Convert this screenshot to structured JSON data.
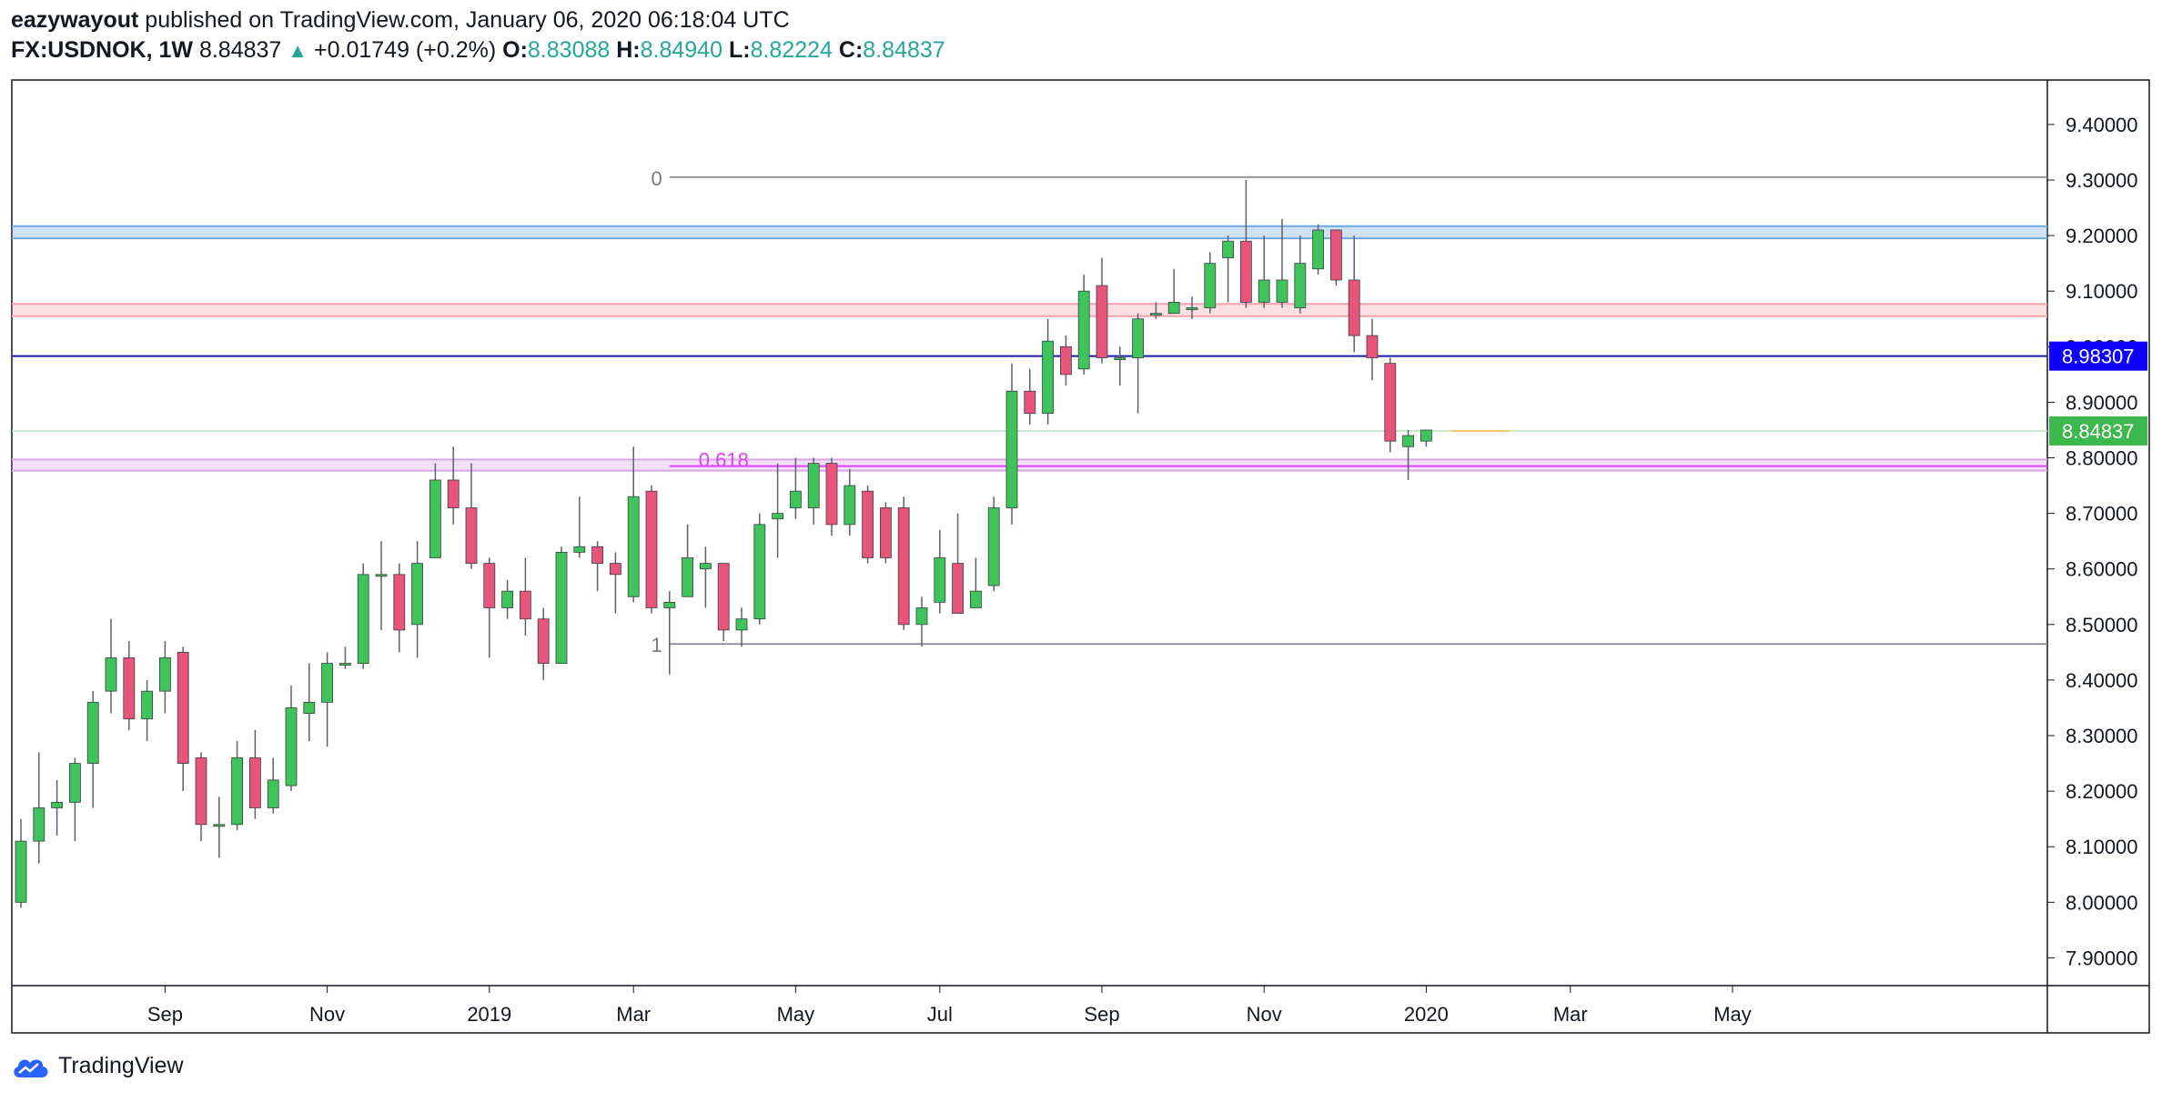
{
  "header": {
    "publisher": "eazywayout",
    "published_text": "published on TradingView.com, January 06, 2020 06:18:04 UTC",
    "symbol": "FX:USDNOK, 1W",
    "last": "8.84837",
    "change": "+0.01749 (+0.2%)",
    "o_label": "O:",
    "o_value": "8.83088",
    "h_label": "H:",
    "h_value": "8.84940",
    "l_label": "L:",
    "l_value": "8.82224",
    "c_label": "C:",
    "c_value": "8.84837"
  },
  "branding": {
    "logo_text": "TradingView",
    "logo_icon": "tradingview-cloud-icon"
  },
  "colors": {
    "up": "#3fc45b",
    "down": "#e8557a",
    "wick": "#5d606b",
    "border": "#131722",
    "blue_line": "#1a1aa6",
    "blue_badge": "#0d00ff",
    "green_badge": "#3db84c",
    "fib_magenta": "#e040fb",
    "blue_zone": "#6fa8dc",
    "red_zone": "#f4a3ab",
    "purple_zone": "#d6a6e6",
    "green_line": "#b7e3b8",
    "orange_line": "#f0c36d"
  },
  "chart_data": {
    "type": "candlestick",
    "symbol": "FX:USDNOK",
    "interval": "1W",
    "ylim": [
      7.85,
      9.48
    ],
    "y_ticks": [
      "9.40000",
      "9.30000",
      "9.20000",
      "9.10000",
      "9.00000",
      "8.90000",
      "8.80000",
      "8.70000",
      "8.60000",
      "8.50000",
      "8.40000",
      "8.30000",
      "8.20000",
      "8.10000",
      "8.00000",
      "7.90000"
    ],
    "x_ticks": [
      {
        "label": "Sep",
        "week": 8
      },
      {
        "label": "Nov",
        "week": 17
      },
      {
        "label": "2019",
        "week": 26
      },
      {
        "label": "Mar",
        "week": 34
      },
      {
        "label": "May",
        "week": 43
      },
      {
        "label": "Jul",
        "week": 51
      },
      {
        "label": "Sep",
        "week": 60
      },
      {
        "label": "Nov",
        "week": 69
      },
      {
        "label": "2020",
        "week": 78
      },
      {
        "label": "Mar",
        "week": 86
      },
      {
        "label": "May",
        "week": 95
      }
    ],
    "candles": [
      [
        8.0,
        8.11,
        7.99,
        8.15
      ],
      [
        8.11,
        8.17,
        8.07,
        8.27
      ],
      [
        8.17,
        8.18,
        8.12,
        8.22
      ],
      [
        8.18,
        8.25,
        8.11,
        8.26
      ],
      [
        8.25,
        8.36,
        8.17,
        8.38
      ],
      [
        8.38,
        8.44,
        8.34,
        8.51
      ],
      [
        8.44,
        8.33,
        8.31,
        8.47
      ],
      [
        8.33,
        8.38,
        8.29,
        8.4
      ],
      [
        8.38,
        8.44,
        8.34,
        8.47
      ],
      [
        8.45,
        8.25,
        8.2,
        8.46
      ],
      [
        8.26,
        8.14,
        8.11,
        8.27
      ],
      [
        8.14,
        8.14,
        8.08,
        8.19
      ],
      [
        8.14,
        8.26,
        8.13,
        8.29
      ],
      [
        8.26,
        8.17,
        8.15,
        8.31
      ],
      [
        8.17,
        8.22,
        8.16,
        8.26
      ],
      [
        8.21,
        8.35,
        8.2,
        8.39
      ],
      [
        8.34,
        8.36,
        8.29,
        8.43
      ],
      [
        8.36,
        8.43,
        8.28,
        8.45
      ],
      [
        8.43,
        8.43,
        8.42,
        8.46
      ],
      [
        8.43,
        8.59,
        8.42,
        8.61
      ],
      [
        8.59,
        8.59,
        8.49,
        8.65
      ],
      [
        8.59,
        8.49,
        8.45,
        8.61
      ],
      [
        8.5,
        8.61,
        8.44,
        8.65
      ],
      [
        8.62,
        8.76,
        8.62,
        8.79
      ],
      [
        8.76,
        8.71,
        8.68,
        8.82
      ],
      [
        8.71,
        8.61,
        8.6,
        8.79
      ],
      [
        8.61,
        8.53,
        8.44,
        8.62
      ],
      [
        8.53,
        8.56,
        8.51,
        8.58
      ],
      [
        8.56,
        8.51,
        8.48,
        8.62
      ],
      [
        8.51,
        8.43,
        8.4,
        8.53
      ],
      [
        8.43,
        8.63,
        8.43,
        8.64
      ],
      [
        8.63,
        8.64,
        8.62,
        8.73
      ],
      [
        8.64,
        8.61,
        8.56,
        8.65
      ],
      [
        8.61,
        8.59,
        8.52,
        8.63
      ],
      [
        8.55,
        8.73,
        8.54,
        8.82
      ],
      [
        8.74,
        8.53,
        8.52,
        8.75
      ],
      [
        8.53,
        8.54,
        8.41,
        8.56
      ],
      [
        8.55,
        8.62,
        8.55,
        8.68
      ],
      [
        8.6,
        8.61,
        8.53,
        8.64
      ],
      [
        8.61,
        8.49,
        8.47,
        8.61
      ],
      [
        8.49,
        8.51,
        8.46,
        8.53
      ],
      [
        8.51,
        8.68,
        8.5,
        8.7
      ],
      [
        8.69,
        8.7,
        8.62,
        8.79
      ],
      [
        8.71,
        8.74,
        8.69,
        8.8
      ],
      [
        8.71,
        8.79,
        8.68,
        8.8
      ],
      [
        8.79,
        8.68,
        8.66,
        8.8
      ],
      [
        8.68,
        8.75,
        8.66,
        8.78
      ],
      [
        8.74,
        8.62,
        8.61,
        8.75
      ],
      [
        8.71,
        8.62,
        8.61,
        8.72
      ],
      [
        8.71,
        8.5,
        8.49,
        8.73
      ],
      [
        8.5,
        8.53,
        8.46,
        8.55
      ],
      [
        8.54,
        8.62,
        8.52,
        8.67
      ],
      [
        8.61,
        8.52,
        8.52,
        8.7
      ],
      [
        8.53,
        8.56,
        8.53,
        8.62
      ],
      [
        8.57,
        8.71,
        8.56,
        8.73
      ],
      [
        8.71,
        8.92,
        8.68,
        8.97
      ],
      [
        8.92,
        8.88,
        8.86,
        8.96
      ],
      [
        8.88,
        9.01,
        8.86,
        9.05
      ],
      [
        9.0,
        8.95,
        8.93,
        9.02
      ],
      [
        8.96,
        9.1,
        8.95,
        9.13
      ],
      [
        9.11,
        8.98,
        8.97,
        9.16
      ],
      [
        8.98,
        8.98,
        8.93,
        9.0
      ],
      [
        8.98,
        9.05,
        8.88,
        9.06
      ],
      [
        9.06,
        9.06,
        9.05,
        9.08
      ],
      [
        9.06,
        9.08,
        9.06,
        9.14
      ],
      [
        9.07,
        9.07,
        9.05,
        9.09
      ],
      [
        9.07,
        9.15,
        9.06,
        9.17
      ],
      [
        9.16,
        9.19,
        9.08,
        9.2
      ],
      [
        9.19,
        9.08,
        9.07,
        9.3
      ],
      [
        9.08,
        9.12,
        9.07,
        9.2
      ],
      [
        9.08,
        9.12,
        9.07,
        9.23
      ],
      [
        9.07,
        9.15,
        9.06,
        9.2
      ],
      [
        9.14,
        9.21,
        9.13,
        9.22
      ],
      [
        9.21,
        9.12,
        9.11,
        9.21
      ],
      [
        9.12,
        9.02,
        8.99,
        9.2
      ],
      [
        9.02,
        8.98,
        8.94,
        9.05
      ],
      [
        8.97,
        8.83,
        8.81,
        8.98
      ],
      [
        8.82,
        8.84,
        8.76,
        8.85
      ],
      [
        8.83,
        8.85,
        8.82,
        8.85
      ]
    ],
    "fib_levels": [
      {
        "label": "0",
        "value": 9.305
      },
      {
        "label": "0.618",
        "value": 8.785
      },
      {
        "label": "1",
        "value": 8.465
      }
    ],
    "zones": [
      {
        "name": "resistance-blue",
        "from": 9.195,
        "to": 9.217
      },
      {
        "name": "resistance-red",
        "from": 9.055,
        "to": 9.077
      },
      {
        "name": "support-purple",
        "from": 8.777,
        "to": 8.797
      }
    ],
    "horizontal_line": 8.98307,
    "current_price_line": 8.84837,
    "price_labels": [
      "8.98307",
      "8.84837"
    ]
  }
}
